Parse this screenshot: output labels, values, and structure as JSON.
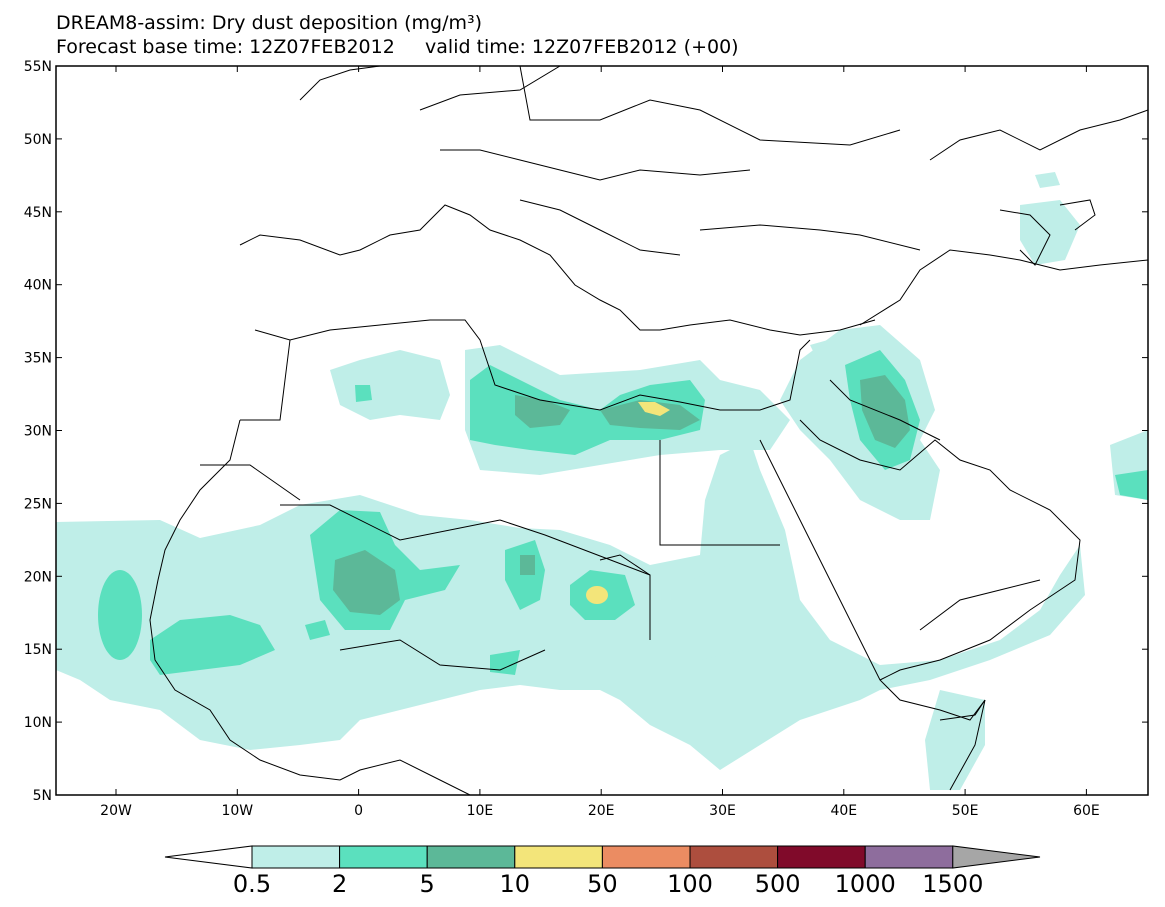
{
  "title_line1": "DREAM8-assim: Dry dust deposition (mg/m³)",
  "title_line2": "Forecast base time: 12Z07FEB2012     valid time: 12Z07FEB2012 (+00)",
  "lat_labels": [
    "55N",
    "50N",
    "45N",
    "40N",
    "35N",
    "30N",
    "25N",
    "20N",
    "15N",
    "10N",
    "5N"
  ],
  "lon_labels": [
    "20W",
    "10W",
    "0",
    "10E",
    "20E",
    "30E",
    "40E",
    "50E",
    "60E"
  ],
  "colorbar": {
    "labels": [
      "0.5",
      "2",
      "5",
      "10",
      "50",
      "100",
      "500",
      "1000",
      "1500"
    ],
    "colors": [
      "#bfeee8",
      "#5be0be",
      "#5cb898",
      "#f3e57a",
      "#eb8c62",
      "#ad4e3e",
      "#800a2a",
      "#8e6d9d"
    ],
    "under_color": "#ffffff",
    "over_color": "#a6a6a6"
  },
  "colors": {
    "c1": "#bfeee8",
    "c2": "#5be0be",
    "c3": "#5cb898",
    "c4": "#f3e57a"
  }
}
